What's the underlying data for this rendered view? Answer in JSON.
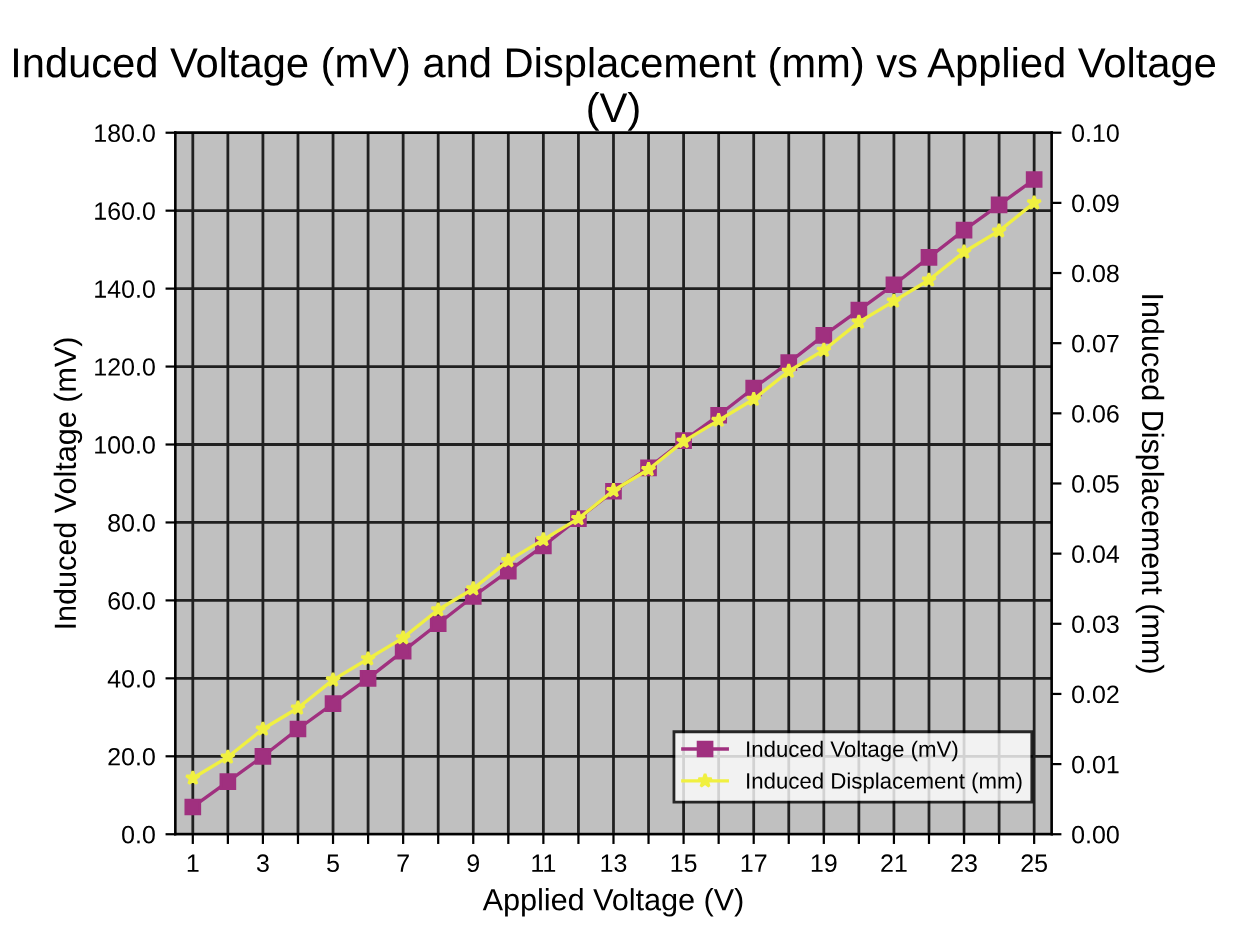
{
  "chart_data": {
    "type": "line",
    "title": "Induced Voltage (mV) and Displacement (mm) vs Applied Voltage (V)",
    "xlabel": "Applied Voltage (V)",
    "ylabel": "Induced Voltage (mV)",
    "y2label": "Induced Displacement (mm)",
    "x": [
      1,
      2,
      3,
      4,
      5,
      6,
      7,
      8,
      9,
      10,
      11,
      12,
      13,
      14,
      15,
      16,
      17,
      18,
      19,
      20,
      21,
      22,
      23,
      24,
      25
    ],
    "series": [
      {
        "name": "Induced Voltage (mV)",
        "color": "#a0307f",
        "marker": "square",
        "values": [
          7,
          13.5,
          20,
          27,
          33.5,
          40,
          47,
          54,
          61,
          67.5,
          74,
          81,
          88,
          94,
          101,
          107.5,
          114.5,
          121,
          128,
          134.5,
          141,
          148,
          155,
          161.5,
          168
        ]
      },
      {
        "name": "Induced Displacement (mm)",
        "color": "#f0f040",
        "marker": "star",
        "axis": "y2",
        "values": [
          0.008,
          0.011,
          0.015,
          0.018,
          0.022,
          0.025,
          0.028,
          0.032,
          0.035,
          0.039,
          0.042,
          0.045,
          0.049,
          0.052,
          0.056,
          0.059,
          0.062,
          0.066,
          0.069,
          0.073,
          0.076,
          0.079,
          0.083,
          0.086,
          0.09
        ]
      }
    ],
    "xlim": [
      0.5,
      25.5
    ],
    "xticks": [
      1,
      {
        "value": 2,
        "label": null
      },
      3,
      {
        "value": 4,
        "label": null
      },
      5,
      {
        "value": 6,
        "label": null
      },
      7,
      {
        "value": 8,
        "label": null
      },
      9,
      {
        "value": 10,
        "label": null
      },
      11,
      {
        "value": 12,
        "label": null
      },
      13,
      {
        "value": 14,
        "label": null
      },
      15,
      {
        "value": 16,
        "label": null
      },
      17,
      {
        "value": 18,
        "label": null
      },
      19,
      {
        "value": 20,
        "label": null
      },
      21,
      {
        "value": 22,
        "label": null
      },
      23,
      {
        "value": 24,
        "label": null
      },
      25
    ],
    "ylim": [
      0,
      180
    ],
    "yticks": [
      {
        "value": 0,
        "label": "0.0"
      },
      {
        "value": 20,
        "label": "20.0"
      },
      {
        "value": 40,
        "label": "40.0"
      },
      {
        "value": 60,
        "label": "60.0"
      },
      {
        "value": 80,
        "label": "80.0"
      },
      {
        "value": 100,
        "label": "100.0"
      },
      {
        "value": 120,
        "label": "120.0"
      },
      {
        "value": 140,
        "label": "140.0"
      },
      {
        "value": 160,
        "label": "160.0"
      },
      {
        "value": 180,
        "label": "180.0"
      }
    ],
    "y2lim": [
      0,
      0.1
    ],
    "y2ticks": [
      {
        "value": 0,
        "label": "0.00"
      },
      0.01,
      0.02,
      0.03,
      0.04,
      0.05,
      0.06,
      0.07,
      0.08,
      0.09,
      {
        "value": 0.1,
        "label": "0.10"
      }
    ],
    "grid": true,
    "legend": "bottom right"
  }
}
